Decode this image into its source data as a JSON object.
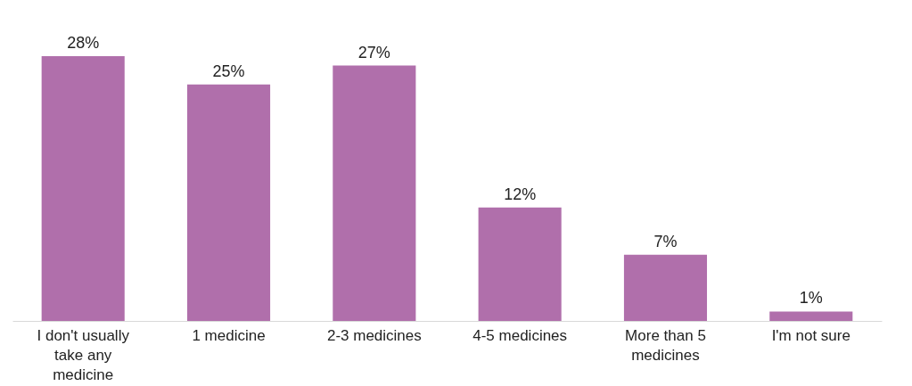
{
  "chart_data": {
    "type": "bar",
    "categories": [
      "I don't usually take any medicine",
      "1 medicine",
      "2-3 medicines",
      "4-5 medicines",
      "More than 5 medicines",
      "I'm not sure"
    ],
    "values": [
      28,
      25,
      27,
      12,
      7,
      1
    ],
    "color": "#b06fab",
    "value_labels": [
      "28%",
      "25%",
      "27%",
      "12%",
      "7%",
      "1%"
    ]
  }
}
